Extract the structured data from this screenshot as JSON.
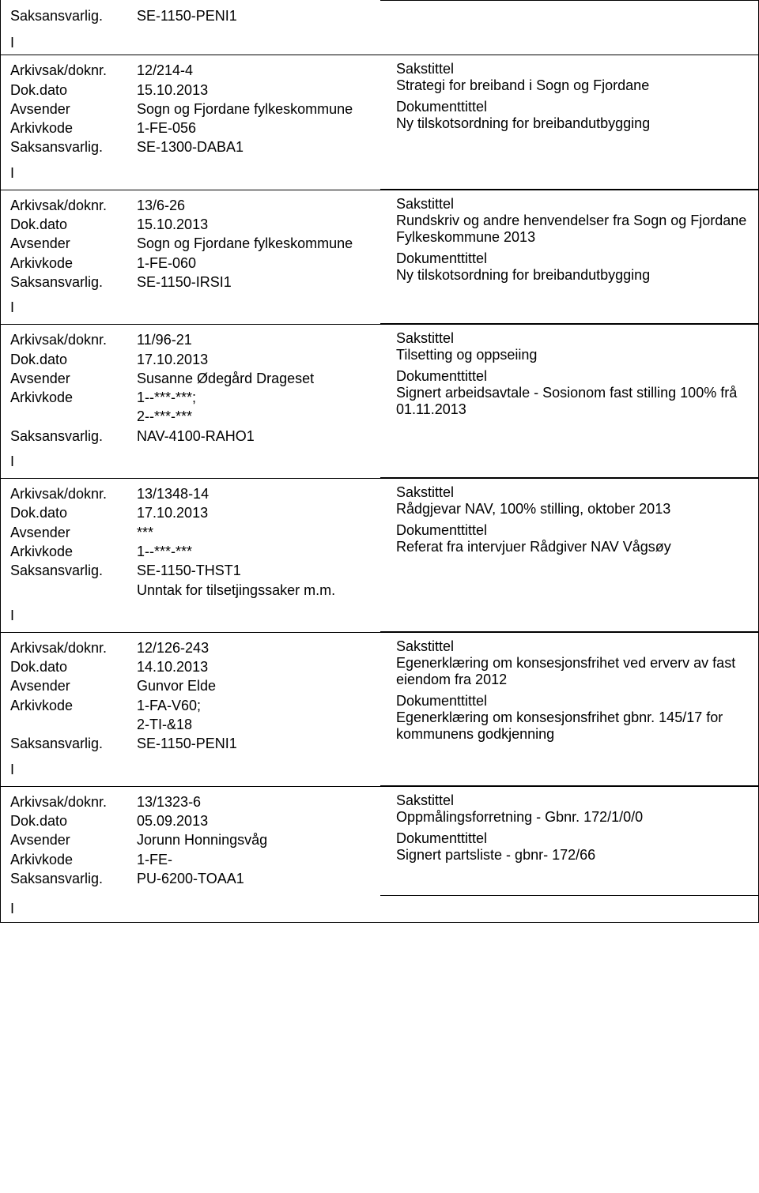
{
  "labels": {
    "saksansvarlig": "Saksansvarlig.",
    "arkivsak": "Arkivsak/doknr.",
    "dokdato": "Dok.dato",
    "avsender": "Avsender",
    "arkivkode": "Arkivkode",
    "sakstittel": "Sakstittel",
    "dokumenttittel": "Dokumenttittel",
    "marker": "I"
  },
  "top": {
    "saksansvarlig": "SE-1150-PENI1"
  },
  "records": [
    {
      "arkivsak": "12/214-4",
      "dokdato": "15.10.2013",
      "avsender": "Sogn og Fjordane fylkeskommune",
      "arkivkode": "1-FE-056",
      "saksansvarlig": "SE-1300-DABA1",
      "sakstittel": "Strategi for breiband i Sogn og Fjordane",
      "dokumenttittel": "Ny tilskotsordning for breibandutbygging"
    },
    {
      "arkivsak": "13/6-26",
      "dokdato": "15.10.2013",
      "avsender": "Sogn og Fjordane fylkeskommune",
      "arkivkode": "1-FE-060",
      "saksansvarlig": "SE-1150-IRSI1",
      "sakstittel": "Rundskriv og andre henvendelser fra Sogn og Fjordane Fylkeskommune 2013",
      "dokumenttittel": "Ny tilskotsordning for breibandutbygging"
    },
    {
      "arkivsak": "11/96-21",
      "dokdato": "17.10.2013",
      "avsender": "Susanne Ødegård Drageset",
      "arkivkode": "1--***-***;\n2--***-***",
      "saksansvarlig": "NAV-4100-RAHO1",
      "sakstittel": "Tilsetting og oppseiing",
      "dokumenttittel": "Signert arbeidsavtale - Sosionom fast stilling 100% frå 01.11.2013"
    },
    {
      "arkivsak": "13/1348-14",
      "dokdato": "17.10.2013",
      "avsender": "***",
      "arkivkode": "1--***-***",
      "saksansvarlig": "SE-1150-THST1\nUnntak for tilsetjingssaker m.m.",
      "sakstittel": "Rådgjevar NAV, 100% stilling, oktober 2013",
      "dokumenttittel": "Referat fra intervjuer Rådgiver NAV Vågsøy"
    },
    {
      "arkivsak": "12/126-243",
      "dokdato": "14.10.2013",
      "avsender": "Gunvor Elde",
      "arkivkode": "1-FA-V60;\n2-TI-&18",
      "saksansvarlig": "SE-1150-PENI1",
      "sakstittel": "Egenerklæring om konsesjonsfrihet ved erverv av fast eiendom fra 2012",
      "dokumenttittel": "Egenerklæring om konsesjonsfrihet gbnr. 145/17 for kommunens godkjenning"
    },
    {
      "arkivsak": "13/1323-6",
      "dokdato": "05.09.2013",
      "avsender": "Jorunn Honningsvåg",
      "arkivkode": "1-FE-",
      "saksansvarlig": "PU-6200-TOAA1",
      "sakstittel": "Oppmålingsforretning - Gbnr. 172/1/0/0",
      "dokumenttittel": "Signert partsliste - gbnr- 172/66"
    }
  ]
}
